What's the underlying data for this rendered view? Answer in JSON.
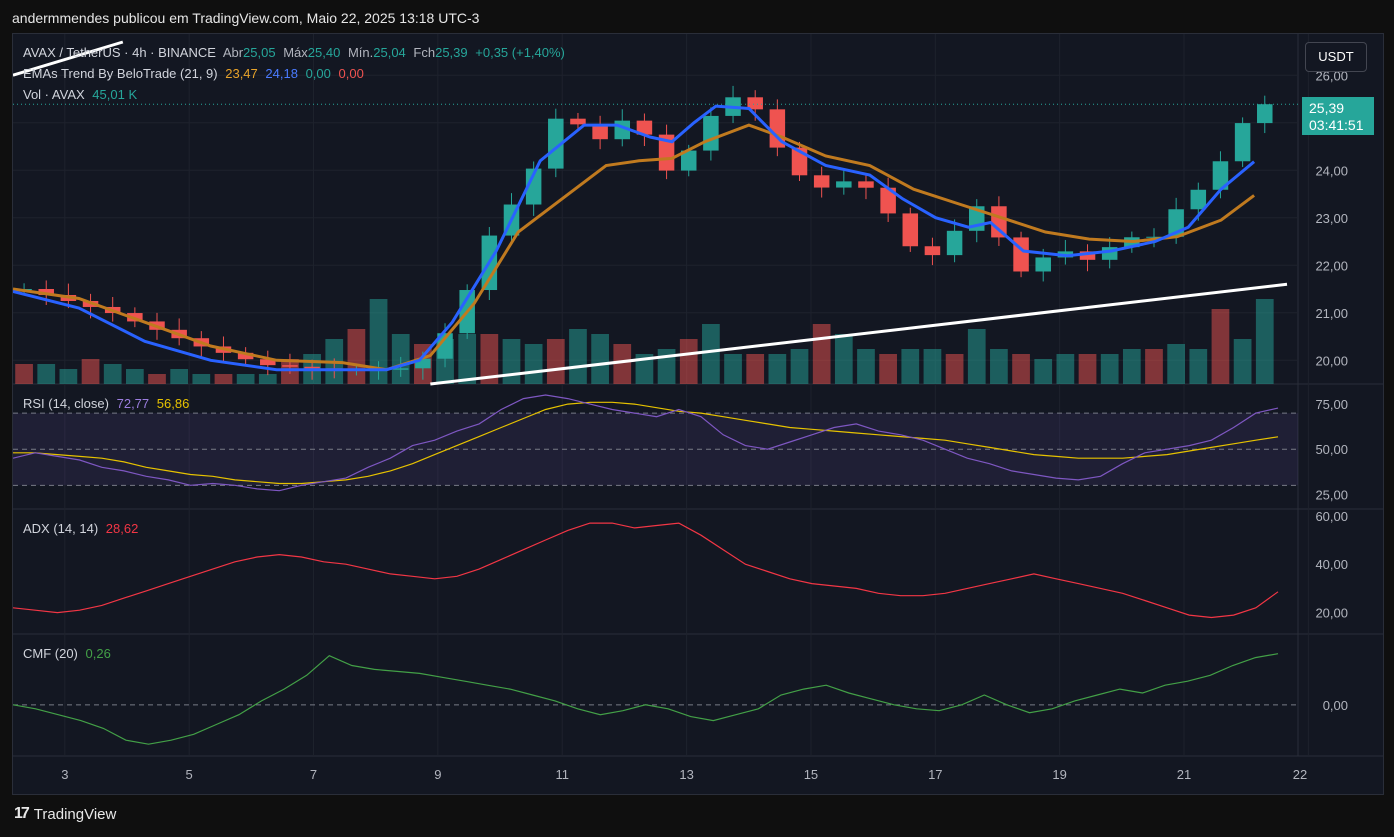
{
  "caption": "andermmendes publicou em TradingView.com, Maio 22, 2025 13:18 UTC-3",
  "footer_brand": "TradingView",
  "currency_label": "USDT",
  "price_badge": {
    "price": "25,39",
    "countdown": "03:41:51"
  },
  "colors": {
    "background": "#131722",
    "grid": "#1e222d",
    "up": "#26a69a",
    "down": "#ef5350",
    "ema_fast": "#2962ff",
    "ema_slow": "#c07a1f",
    "rsi": "#7e57c2",
    "rsi_ma": "#e6c200",
    "adx": "#f23645",
    "cmf": "#43a047",
    "trendline": "#ffffff"
  },
  "legend": {
    "symbol": "AVAX / TetherUS · 4h · BINANCE",
    "open_label": "Abr",
    "open": "25,05",
    "high_label": "Máx",
    "high": "25,40",
    "low_label": "Mín.",
    "low": "25,04",
    "close_label": "Fch",
    "close": "25,39",
    "change": "+0,35 (+1,40%)",
    "ema_name": "EMAs Trend By BeloTrade (21, 9)",
    "ema_v1": "23,47",
    "ema_v2": "24,18",
    "ema_v3": "0,00",
    "ema_v4": "0,00",
    "vol_name": "Vol · AVAX",
    "vol_value": "45,01 K",
    "rsi_name": "RSI (14, close)",
    "rsi_value": "72,77",
    "rsi_ma": "56,86",
    "adx_name": "ADX (14, 14)",
    "adx_value": "28,62",
    "cmf_name": "CMF (20)",
    "cmf_value": "0,26"
  },
  "chart_data": {
    "type": "candlestick",
    "title": "AVAX / TetherUS · 4h · BINANCE",
    "x_tick_labels": [
      "3",
      "5",
      "7",
      "9",
      "11",
      "13",
      "15",
      "17",
      "19",
      "21",
      "22"
    ],
    "price_axis": {
      "ticks": [
        "26,00",
        "25,00",
        "24,00",
        "23,00",
        "22,00",
        "21,00",
        "20,00"
      ],
      "range": [
        19.5,
        26.7
      ]
    },
    "rsi_axis": {
      "ticks": [
        "75,00",
        "50,00",
        "25,00"
      ],
      "bands": [
        30,
        70
      ],
      "mid": 50
    },
    "adx_axis": {
      "ticks": [
        "60,00",
        "40,00",
        "20,00"
      ]
    },
    "cmf_axis": {
      "ticks": [
        "0,00"
      ]
    },
    "close_path": [
      [
        0,
        21.5
      ],
      [
        4,
        21.0
      ],
      [
        8,
        20.3
      ],
      [
        11,
        19.9
      ],
      [
        14,
        19.8
      ],
      [
        15.5,
        19.8
      ],
      [
        17,
        19.8
      ],
      [
        18.5,
        20.1
      ],
      [
        19.5,
        20.8
      ],
      [
        20.5,
        21.8
      ],
      [
        21.5,
        23.0
      ],
      [
        22.5,
        23.4
      ],
      [
        23.5,
        24.3
      ],
      [
        24.5,
        25.4
      ],
      [
        25.5,
        24.8
      ],
      [
        26.5,
        24.6
      ],
      [
        27.5,
        25.2
      ],
      [
        28.5,
        24.6
      ],
      [
        29.5,
        23.8
      ],
      [
        30.5,
        24.6
      ],
      [
        31.5,
        25.3
      ],
      [
        32.5,
        25.6
      ],
      [
        33.5,
        25.2
      ],
      [
        34.5,
        24.3
      ],
      [
        35.5,
        23.8
      ],
      [
        36.5,
        23.6
      ],
      [
        37.5,
        23.8
      ],
      [
        38.5,
        23.6
      ],
      [
        39.5,
        23.0
      ],
      [
        40.5,
        22.3
      ],
      [
        41.5,
        22.2
      ],
      [
        42.5,
        22.8
      ],
      [
        43.5,
        23.3
      ],
      [
        44.5,
        22.5
      ],
      [
        45.5,
        21.8
      ],
      [
        46.5,
        22.2
      ],
      [
        47.5,
        22.3
      ],
      [
        48.5,
        22.1
      ],
      [
        49.5,
        22.4
      ],
      [
        50.5,
        22.6
      ],
      [
        51.5,
        22.6
      ],
      [
        52.5,
        23.2
      ],
      [
        53.5,
        23.6
      ],
      [
        54.5,
        24.2
      ],
      [
        55.5,
        25.0
      ],
      [
        56.5,
        25.39
      ]
    ],
    "ema_fast_path": [
      [
        0,
        21.45
      ],
      [
        3,
        21.1
      ],
      [
        6,
        20.4
      ],
      [
        9,
        20.0
      ],
      [
        12,
        19.8
      ],
      [
        15,
        19.8
      ],
      [
        17,
        19.8
      ],
      [
        18.5,
        20.0
      ],
      [
        20,
        20.8
      ],
      [
        22,
        22.3
      ],
      [
        24,
        24.2
      ],
      [
        26,
        24.95
      ],
      [
        27.5,
        24.95
      ],
      [
        29,
        24.7
      ],
      [
        30,
        24.6
      ],
      [
        31,
        25.0
      ],
      [
        32,
        25.35
      ],
      [
        33.5,
        25.3
      ],
      [
        35,
        24.6
      ],
      [
        37,
        24.1
      ],
      [
        39,
        23.9
      ],
      [
        40.5,
        23.4
      ],
      [
        42,
        23.0
      ],
      [
        43.5,
        22.8
      ],
      [
        44.5,
        22.9
      ],
      [
        46,
        22.3
      ],
      [
        48,
        22.2
      ],
      [
        50,
        22.3
      ],
      [
        52,
        22.5
      ],
      [
        53.5,
        22.8
      ],
      [
        55,
        23.6
      ],
      [
        56.5,
        24.18
      ]
    ],
    "ema_slow_path": [
      [
        0,
        21.5
      ],
      [
        3,
        21.3
      ],
      [
        6,
        20.8
      ],
      [
        9,
        20.3
      ],
      [
        12,
        20.0
      ],
      [
        15,
        19.95
      ],
      [
        17,
        19.8
      ],
      [
        19,
        20.1
      ],
      [
        21,
        21.2
      ],
      [
        23,
        22.7
      ],
      [
        25,
        23.4
      ],
      [
        27,
        24.1
      ],
      [
        28.5,
        24.2
      ],
      [
        30,
        24.25
      ],
      [
        31.5,
        24.6
      ],
      [
        33.5,
        24.95
      ],
      [
        35,
        24.7
      ],
      [
        37,
        24.3
      ],
      [
        39,
        24.1
      ],
      [
        41,
        23.6
      ],
      [
        43,
        23.3
      ],
      [
        45,
        23.0
      ],
      [
        47,
        22.7
      ],
      [
        49,
        22.55
      ],
      [
        51,
        22.5
      ],
      [
        53,
        22.6
      ],
      [
        55,
        22.95
      ],
      [
        56.5,
        23.47
      ]
    ],
    "trendlines": [
      {
        "from": [
          19,
          19.5
        ],
        "to": [
          58,
          21.6
        ]
      },
      {
        "from": [
          0,
          26.0
        ],
        "to": [
          5,
          26.7
        ]
      }
    ],
    "volume_series": [
      0.2,
      0.2,
      0.15,
      0.25,
      0.2,
      0.15,
      0.1,
      0.15,
      0.1,
      0.1,
      0.1,
      0.1,
      0.25,
      0.3,
      0.45,
      0.55,
      0.85,
      0.5,
      0.4,
      0.45,
      0.5,
      0.5,
      0.45,
      0.4,
      0.45,
      0.55,
      0.5,
      0.4,
      0.3,
      0.35,
      0.45,
      0.6,
      0.3,
      0.3,
      0.3,
      0.35,
      0.6,
      0.5,
      0.35,
      0.3,
      0.35,
      0.35,
      0.3,
      0.55,
      0.35,
      0.3,
      0.25,
      0.3,
      0.3,
      0.3,
      0.35,
      0.35,
      0.4,
      0.35,
      0.75,
      0.45,
      0.85
    ],
    "rsi_series": [
      45,
      48,
      46,
      44,
      40,
      38,
      35,
      33,
      30,
      31,
      30,
      28,
      27,
      30,
      32,
      34,
      40,
      45,
      52,
      55,
      60,
      64,
      72,
      78,
      80,
      78,
      75,
      72,
      70,
      68,
      72,
      68,
      58,
      52,
      50,
      54,
      58,
      62,
      64,
      60,
      58,
      55,
      50,
      45,
      42,
      38,
      36,
      34,
      33,
      35,
      42,
      48,
      50,
      52,
      55,
      62,
      70,
      72.77
    ],
    "rsi_ma_series": [
      48,
      48,
      47,
      46,
      45,
      43,
      40,
      38,
      36,
      35,
      33,
      32,
      31,
      31,
      32,
      33,
      35,
      38,
      42,
      47,
      52,
      57,
      62,
      67,
      72,
      75,
      76,
      76,
      75,
      73,
      71,
      70,
      68,
      66,
      64,
      62,
      61,
      60,
      59,
      58,
      57,
      56,
      55,
      53,
      51,
      49,
      47,
      46,
      45,
      45,
      45,
      46,
      47,
      49,
      51,
      53,
      55,
      56.86
    ],
    "adx_series": [
      22,
      21,
      20,
      21,
      23,
      26,
      29,
      32,
      35,
      38,
      41,
      43,
      44,
      43,
      41,
      40,
      38,
      36,
      35,
      34,
      35,
      38,
      42,
      46,
      50,
      54,
      57,
      57,
      55,
      56,
      57,
      52,
      46,
      40,
      37,
      34,
      32,
      31,
      30,
      28,
      27,
      27,
      28,
      30,
      32,
      34,
      36,
      34,
      32,
      30,
      28,
      25,
      22,
      19,
      18,
      19,
      22,
      28.62
    ],
    "cmf_series": [
      0.0,
      -0.02,
      -0.05,
      -0.08,
      -0.12,
      -0.18,
      -0.2,
      -0.18,
      -0.15,
      -0.1,
      -0.05,
      0.02,
      0.08,
      0.15,
      0.25,
      0.2,
      0.18,
      0.17,
      0.16,
      0.14,
      0.12,
      0.1,
      0.08,
      0.05,
      0.02,
      -0.02,
      -0.05,
      -0.03,
      0.0,
      -0.02,
      -0.06,
      -0.08,
      -0.05,
      -0.02,
      0.05,
      0.08,
      0.1,
      0.06,
      0.03,
      0.0,
      -0.02,
      -0.03,
      0.0,
      0.05,
      0.0,
      -0.04,
      -0.02,
      0.02,
      0.05,
      0.08,
      0.06,
      0.1,
      0.12,
      0.15,
      0.2,
      0.24,
      0.26
    ]
  }
}
